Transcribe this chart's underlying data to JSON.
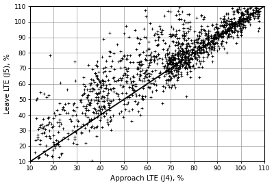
{
  "xlabel": "Approach LTE (J4), %",
  "ylabel": "Leave LTE (J5), %",
  "xlim": [
    10,
    110
  ],
  "ylim": [
    10,
    110
  ],
  "xticks": [
    10,
    20,
    30,
    40,
    50,
    60,
    70,
    80,
    90,
    100,
    110
  ],
  "yticks": [
    10,
    20,
    30,
    40,
    50,
    60,
    70,
    80,
    90,
    100,
    110
  ],
  "line_color": "#000000",
  "scatter_color": "#000000",
  "marker": "+",
  "background_color": "#ffffff",
  "grid_color": "#999999",
  "seed": 42
}
